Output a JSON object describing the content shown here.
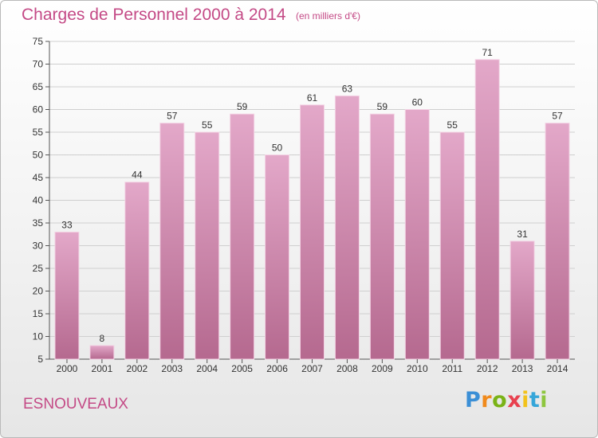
{
  "header": {
    "title": "Charges de Personnel 2000 à 2014",
    "subtitle": "(en milliers d'€)"
  },
  "footer": {
    "commune": "ESNOUVEAUX",
    "logo": "Proxiti"
  },
  "colors": {
    "title": "#c44a86",
    "bar_top": "#e3a8c9",
    "bar_bottom": "#b5698f",
    "grid": "#cfcfcf"
  },
  "chart_data": {
    "type": "bar",
    "categories": [
      "2000",
      "2001",
      "2002",
      "2003",
      "2004",
      "2005",
      "2006",
      "2007",
      "2008",
      "2009",
      "2010",
      "2011",
      "2012",
      "2013",
      "2014"
    ],
    "values": [
      33,
      8,
      44,
      57,
      55,
      59,
      50,
      61,
      63,
      59,
      60,
      55,
      71,
      31,
      57
    ],
    "ylim": [
      5,
      75
    ],
    "yticks": [
      5,
      10,
      15,
      20,
      25,
      30,
      35,
      40,
      45,
      50,
      55,
      60,
      65,
      70,
      75
    ],
    "grid": true,
    "data_labels": true
  }
}
